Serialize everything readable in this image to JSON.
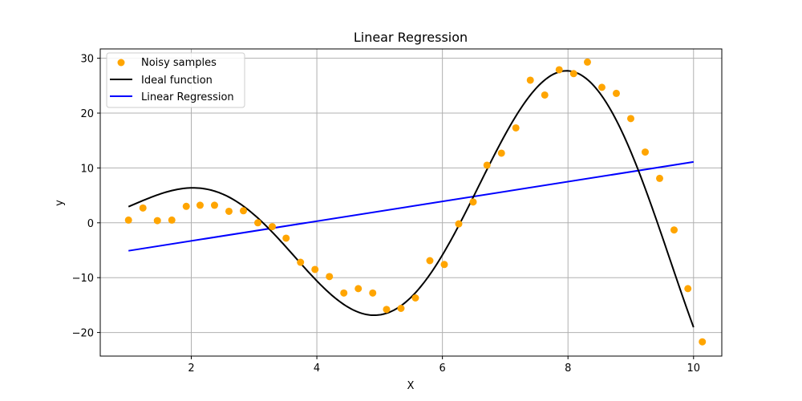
{
  "chart_data": {
    "type": "scatter",
    "title": "Linear Regression",
    "xlabel": "X",
    "ylabel": "y",
    "xlim": [
      0.55,
      10.45
    ],
    "ylim": [
      -24.3,
      31.7
    ],
    "xticks": [
      2,
      4,
      6,
      8,
      10
    ],
    "yticks": [
      -20,
      -10,
      0,
      10,
      20,
      30
    ],
    "grid": true,
    "legend": {
      "position": "top-left"
    },
    "series": [
      {
        "name": "Noisy samples",
        "kind": "scatter",
        "color": "#ffa500",
        "x": [
          1.0,
          1.23,
          1.46,
          1.69,
          1.92,
          2.14,
          2.37,
          2.6,
          2.83,
          3.06,
          3.29,
          3.51,
          3.74,
          3.97,
          4.2,
          4.43,
          4.66,
          4.89,
          5.11,
          5.34,
          5.57,
          5.8,
          6.03,
          6.26,
          6.49,
          6.71,
          6.94,
          7.17,
          7.4,
          7.63,
          7.86,
          8.09,
          8.31,
          8.54,
          8.77,
          9.0,
          9.23,
          9.46,
          9.69,
          9.91,
          10.14
        ],
        "y": [
          0.5,
          2.7,
          0.4,
          0.5,
          3.0,
          3.2,
          3.2,
          2.1,
          2.2,
          0.0,
          -0.7,
          -2.8,
          -7.2,
          -8.5,
          -9.8,
          -12.8,
          -12.0,
          -12.8,
          -15.8,
          -15.6,
          -13.7,
          -6.9,
          -7.6,
          -0.2,
          3.8,
          10.5,
          12.7,
          17.3,
          26.0,
          23.3,
          27.9,
          27.2,
          29.3,
          24.7,
          23.6,
          19.0,
          12.9,
          8.1,
          -1.3,
          -12.0,
          -21.7
        ]
      },
      {
        "name": "Ideal function",
        "kind": "line",
        "color": "#000000"
      },
      {
        "name": "Linear Regression",
        "kind": "line",
        "color": "#0000ff",
        "x": [
          1,
          10
        ],
        "y": [
          -5.1,
          11.1
        ]
      }
    ]
  }
}
